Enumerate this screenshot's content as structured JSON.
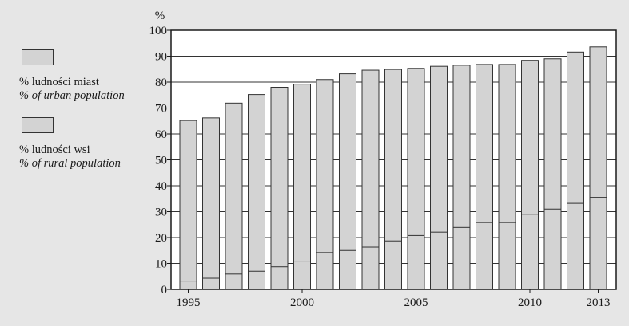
{
  "colors": {
    "background": "#e6e6e6",
    "plot_background": "#ffffff",
    "bar_fill": "#d3d3d3",
    "bar_stroke": "#333333",
    "grid": "#333333"
  },
  "legend": {
    "items": [
      {
        "label_pl": "% ludności miast",
        "label_en": "% of urban population"
      },
      {
        "label_pl": "% ludności wsi",
        "label_en": "% of rural population"
      }
    ]
  },
  "chart_data": {
    "type": "bar",
    "title": "",
    "xlabel": "",
    "ylabel": "%",
    "ylim": [
      0,
      100
    ],
    "yticks": [
      0,
      10,
      20,
      30,
      40,
      50,
      60,
      70,
      80,
      90,
      100
    ],
    "grid": "horizontal",
    "legend_position": "left",
    "categories": [
      1995,
      1996,
      1997,
      1998,
      1999,
      2000,
      2001,
      2002,
      2003,
      2004,
      2005,
      2006,
      2007,
      2008,
      2009,
      2010,
      2011,
      2012,
      2013
    ],
    "xtick_labels": [
      "1995",
      "2000",
      "2005",
      "2010",
      "2013"
    ],
    "series": [
      {
        "name": "% ludności miast / % of urban population",
        "values": [
          65.2,
          66.2,
          71.9,
          75.2,
          78.0,
          79.2,
          81.0,
          83.2,
          84.6,
          84.9,
          85.3,
          86.1,
          86.5,
          86.8,
          86.8,
          88.4,
          89.0,
          91.6,
          93.6
        ]
      },
      {
        "name": "% ludności wsi / % of rural population",
        "values": [
          3.2,
          4.3,
          5.9,
          7.0,
          8.7,
          10.9,
          14.2,
          15.0,
          16.3,
          18.7,
          20.8,
          22.1,
          23.9,
          25.8,
          25.8,
          29.0,
          31.0,
          33.2,
          35.5
        ]
      }
    ]
  }
}
